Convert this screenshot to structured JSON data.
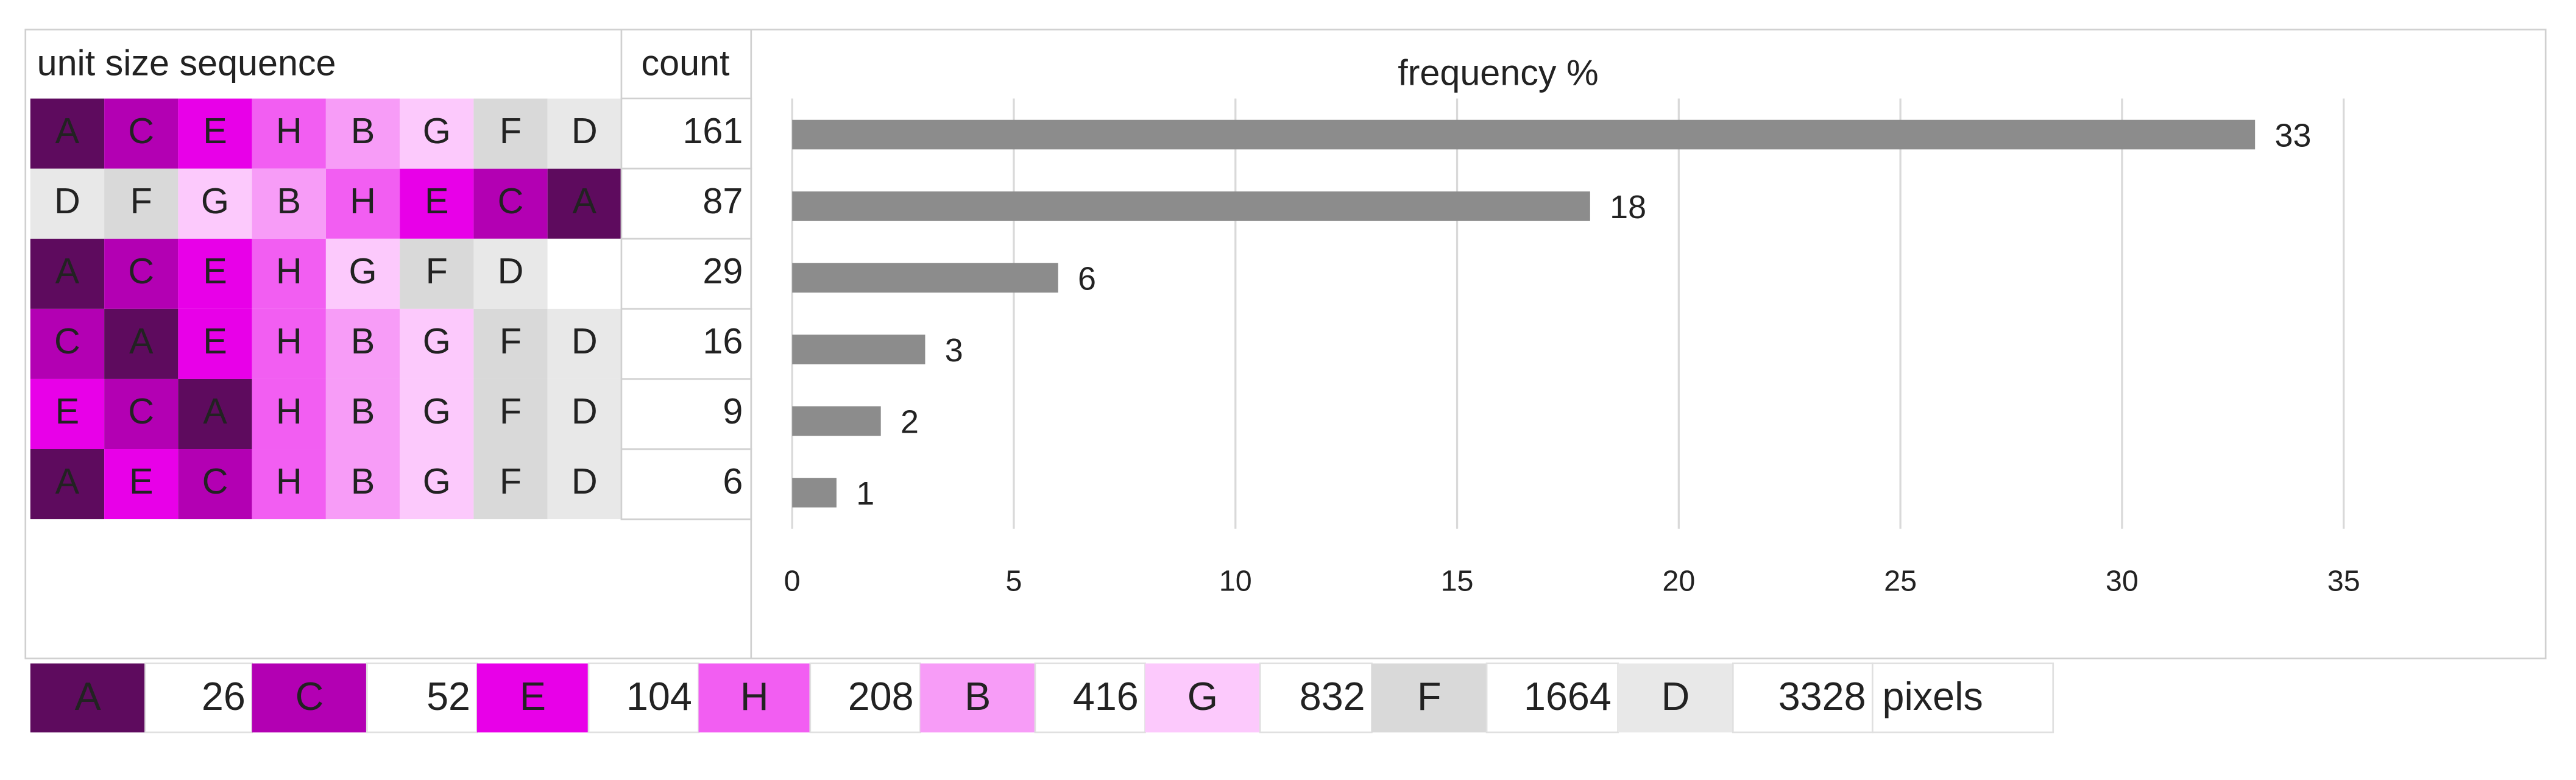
{
  "table": {
    "header": [
      "unit size sequence",
      "count"
    ],
    "rows": [
      {
        "sequence": [
          "A",
          "C",
          "E",
          "H",
          "B",
          "G",
          "F",
          "D"
        ],
        "count": 161
      },
      {
        "sequence": [
          "D",
          "F",
          "G",
          "B",
          "H",
          "E",
          "C",
          "A"
        ],
        "count": 87
      },
      {
        "sequence": [
          "A",
          "C",
          "E",
          "H",
          "G",
          "F",
          "D"
        ],
        "count": 29
      },
      {
        "sequence": [
          "C",
          "A",
          "E",
          "H",
          "B",
          "G",
          "F",
          "D"
        ],
        "count": 16
      },
      {
        "sequence": [
          "E",
          "C",
          "A",
          "H",
          "B",
          "G",
          "F",
          "D"
        ],
        "count": 9
      },
      {
        "sequence": [
          "A",
          "E",
          "C",
          "H",
          "B",
          "G",
          "F",
          "D"
        ],
        "count": 6
      }
    ],
    "legend": [
      {
        "unit": "A",
        "size": 26,
        "color": "#5e0b5e"
      },
      {
        "unit": "C",
        "size": 52,
        "color": "#b300b3"
      },
      {
        "unit": "E",
        "size": 104,
        "color": "#e800e8"
      },
      {
        "unit": "H",
        "size": 208,
        "color": "#f25ef2"
      },
      {
        "unit": "B",
        "size": 416,
        "color": "#f79cf7"
      },
      {
        "unit": "G",
        "size": 832,
        "color": "#fcc9fc"
      },
      {
        "unit": "F",
        "size": 1664,
        "color": "#d9d9d9"
      },
      {
        "unit": "D",
        "size": 3328,
        "color": "#e8e8e8"
      }
    ],
    "legend_unit": "pixels"
  },
  "chart_data": {
    "type": "bar",
    "orientation": "horizontal",
    "title": "frequency %",
    "values": [
      33,
      18,
      6,
      3,
      2,
      1
    ],
    "color": "#8c8c8c",
    "xlim": [
      0,
      35
    ],
    "xticks": [
      0,
      5,
      10,
      15,
      20,
      25,
      30,
      35
    ],
    "grid": true
  }
}
